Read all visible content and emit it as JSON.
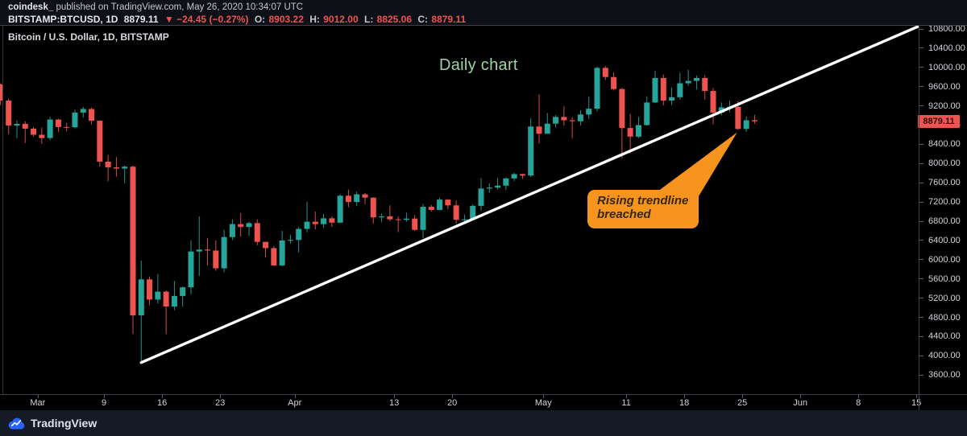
{
  "header": {
    "attribution_user": "coindesk_",
    "attribution_rest": " published on TradingView.com, May 26, 2020 10:34:07 UTC",
    "symbol": "BITSTAMP:BTCUSD, 1D",
    "last_price": "8879.11",
    "change": "▼ −24.45 (−0.27%)",
    "o_label": "O:",
    "o_value": "8903.22",
    "h_label": "H:",
    "h_value": "9012.00",
    "l_label": "L:",
    "l_value": "8825.06",
    "c_label": "C:",
    "c_value": "8879.11"
  },
  "chart": {
    "symbol_label": "Bitcoin / U.S. Dollar, 1D, BITSTAMP",
    "watermark": "Daily chart",
    "callout_text": "Rising trendline breached"
  },
  "footer": {
    "brand": "TradingView"
  },
  "colors": {
    "up": "#26a69a",
    "down": "#ef5350",
    "trendline": "#ffffff",
    "callout": "#f7941e",
    "watermark_text": "#9fd4a4",
    "price_flag_bg": "#ef5350",
    "background": "#000000",
    "frame": "#3f434e"
  },
  "chart_data": {
    "type": "candlestick",
    "title": "Bitcoin / U.S. Dollar, 1D, BITSTAMP",
    "start_date": "2020-02-25",
    "interval": "1D",
    "ylim": [
      3400,
      10880
    ],
    "y_axis_ticks": [
      10800,
      10400,
      10000,
      9600,
      9200,
      8800,
      8400,
      8000,
      7600,
      7200,
      6800,
      6400,
      6000,
      5600,
      5200,
      4800,
      4400,
      4000,
      3600
    ],
    "x_axis_labels": [
      {
        "text": "Mar",
        "index": 5
      },
      {
        "text": "9",
        "index": 13
      },
      {
        "text": "16",
        "index": 20
      },
      {
        "text": "23",
        "index": 27
      },
      {
        "text": "Apr",
        "index": 36
      },
      {
        "text": "13",
        "index": 48
      },
      {
        "text": "20",
        "index": 55
      },
      {
        "text": "May",
        "index": 66
      },
      {
        "text": "11",
        "index": 76
      },
      {
        "text": "18",
        "index": 83
      },
      {
        "text": "25",
        "index": 90
      },
      {
        "text": "Jun",
        "index": 97
      },
      {
        "text": "8",
        "index": 104
      },
      {
        "text": "15",
        "index": 111
      }
    ],
    "last_price_label": {
      "text": "8879.11",
      "price": 8879.11
    },
    "trendline": {
      "start": {
        "index": 17,
        "price": 3860
      },
      "end": {
        "index": 110.7,
        "price": 10850
      }
    },
    "callout_anchor": {
      "index": 88.9,
      "price": 8650
    },
    "ohlc": [
      [
        9650,
        9669,
        9216,
        9310
      ],
      [
        9310,
        9353,
        8610,
        8790
      ],
      [
        8790,
        8899,
        8528,
        8825
      ],
      [
        8825,
        8880,
        8428,
        8726
      ],
      [
        8726,
        8760,
        8560,
        8599
      ],
      [
        8599,
        8750,
        8410,
        8530
      ],
      [
        8530,
        8970,
        8487,
        8915
      ],
      [
        8915,
        8935,
        8655,
        8760
      ],
      [
        8760,
        8845,
        8670,
        8755
      ],
      [
        8755,
        9120,
        8735,
        9060
      ],
      [
        9060,
        9180,
        8960,
        9135
      ],
      [
        9135,
        9160,
        8815,
        8890
      ],
      [
        8890,
        8900,
        7935,
        8040
      ],
      [
        8040,
        8180,
        7630,
        7920
      ],
      [
        7920,
        8135,
        7730,
        7895
      ],
      [
        7895,
        7960,
        7590,
        7935
      ],
      [
        7935,
        7960,
        4450,
        4841
      ],
      [
        4841,
        5980,
        3850,
        5590
      ],
      [
        5590,
        5650,
        5050,
        5170
      ],
      [
        5170,
        5700,
        5090,
        5335
      ],
      [
        5335,
        5360,
        4450,
        5025
      ],
      [
        5025,
        5560,
        4950,
        5245
      ],
      [
        5245,
        5440,
        5020,
        5425
      ],
      [
        5425,
        6400,
        5280,
        6170
      ],
      [
        6170,
        6900,
        5660,
        6210
      ],
      [
        6210,
        6450,
        5880,
        6190
      ],
      [
        6190,
        6400,
        5770,
        5820
      ],
      [
        5820,
        6620,
        5740,
        6470
      ],
      [
        6470,
        6840,
        6410,
        6740
      ],
      [
        6740,
        6970,
        6480,
        6680
      ],
      [
        6680,
        6790,
        6500,
        6760
      ],
      [
        6760,
        6840,
        6300,
        6370
      ],
      [
        6370,
        6370,
        6050,
        6240
      ],
      [
        6240,
        6280,
        5870,
        5880
      ],
      [
        5880,
        6600,
        5860,
        6400
      ],
      [
        6400,
        6520,
        6330,
        6410
      ],
      [
        6410,
        6680,
        6150,
        6640
      ],
      [
        6640,
        7200,
        6570,
        6790
      ],
      [
        6790,
        7000,
        6630,
        6740
      ],
      [
        6740,
        6950,
        6660,
        6860
      ],
      [
        6860,
        6900,
        6680,
        6770
      ],
      [
        6770,
        7360,
        6770,
        7330
      ],
      [
        7330,
        7460,
        7090,
        7200
      ],
      [
        7200,
        7420,
        7120,
        7360
      ],
      [
        7360,
        7390,
        7150,
        7290
      ],
      [
        7290,
        7300,
        6750,
        6880
      ],
      [
        6880,
        6960,
        6780,
        6900
      ],
      [
        6900,
        7130,
        6800,
        6840
      ],
      [
        6840,
        6900,
        6575,
        6830
      ],
      [
        6830,
        6980,
        6790,
        6855
      ],
      [
        6855,
        6930,
        6600,
        6620
      ],
      [
        6620,
        7160,
        6450,
        7100
      ],
      [
        7100,
        7140,
        7000,
        7035
      ],
      [
        7035,
        7290,
        7030,
        7250
      ],
      [
        7250,
        7260,
        7050,
        7130
      ],
      [
        7130,
        7230,
        6750,
        6830
      ],
      [
        6830,
        6940,
        6770,
        6840
      ],
      [
        6840,
        7150,
        6820,
        7120
      ],
      [
        7120,
        7700,
        7020,
        7480
      ],
      [
        7480,
        7590,
        7390,
        7500
      ],
      [
        7500,
        7700,
        7460,
        7540
      ],
      [
        7540,
        7710,
        7450,
        7690
      ],
      [
        7690,
        7810,
        7640,
        7780
      ],
      [
        7780,
        7790,
        7680,
        7750
      ],
      [
        7750,
        8940,
        7720,
        8770
      ],
      [
        8770,
        9440,
        8420,
        8620
      ],
      [
        8620,
        9050,
        8620,
        8830
      ],
      [
        8830,
        9010,
        8750,
        8970
      ],
      [
        8970,
        9190,
        8790,
        8900
      ],
      [
        8900,
        8960,
        8520,
        8880
      ],
      [
        8880,
        9110,
        8790,
        9020
      ],
      [
        9020,
        9390,
        8930,
        9140
      ],
      [
        9140,
        10020,
        9090,
        9990
      ],
      [
        9990,
        10030,
        9740,
        9800
      ],
      [
        9800,
        9900,
        9520,
        9550
      ],
      [
        9550,
        9570,
        8110,
        8740
      ],
      [
        8740,
        9030,
        8210,
        8560
      ],
      [
        8560,
        8970,
        8530,
        8800
      ],
      [
        8800,
        9400,
        8790,
        9270
      ],
      [
        9270,
        9930,
        9260,
        9780
      ],
      [
        9780,
        9850,
        9210,
        9310
      ],
      [
        9310,
        9580,
        9220,
        9380
      ],
      [
        9380,
        9890,
        9330,
        9670
      ],
      [
        9670,
        9950,
        9620,
        9720
      ],
      [
        9720,
        9830,
        9540,
        9780
      ],
      [
        9780,
        9840,
        9330,
        9510
      ],
      [
        9510,
        9570,
        8815,
        9060
      ],
      [
        9060,
        9270,
        9000,
        9170
      ],
      [
        9170,
        9310,
        9070,
        9180
      ],
      [
        9180,
        9300,
        8700,
        8720
      ],
      [
        8720,
        8980,
        8660,
        8900
      ],
      [
        8903,
        9012,
        8825,
        8879
      ]
    ]
  }
}
